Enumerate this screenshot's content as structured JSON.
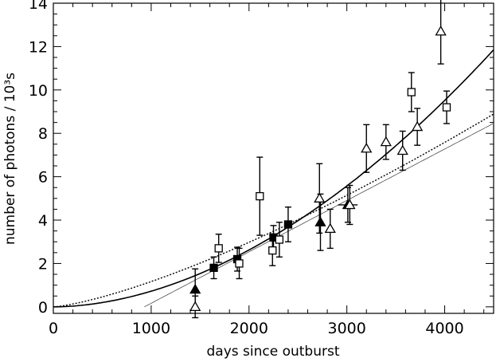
{
  "chart_data": {
    "type": "scatter",
    "title": "",
    "xlabel": "days since outburst",
    "ylabel": "number of photons / 10³s",
    "xlim": [
      0,
      4500
    ],
    "ylim": [
      -0.3,
      14
    ],
    "x_ticks": [
      0,
      1000,
      2000,
      3000,
      4000
    ],
    "y_ticks": [
      0,
      2,
      4,
      6,
      8,
      10,
      12,
      14
    ],
    "x_tick_labels": [
      "0",
      "1000",
      "2000",
      "3000",
      "4000"
    ],
    "y_tick_labels": [
      "0",
      "2",
      "4",
      "6",
      "8",
      "10",
      "12",
      "14"
    ],
    "grid": false,
    "legend": null,
    "series": [
      {
        "marker": "filled-square",
        "points": [
          {
            "x": 1640,
            "y": 1.8,
            "err": 0.5
          },
          {
            "x": 1880,
            "y": 2.2,
            "err": 0.55
          },
          {
            "x": 2250,
            "y": 3.2,
            "err": 0.55
          },
          {
            "x": 2400,
            "y": 3.8,
            "err": 0.8
          }
        ]
      },
      {
        "marker": "open-square",
        "points": [
          {
            "x": 1690,
            "y": 2.7,
            "err": 0.65
          },
          {
            "x": 1900,
            "y": 2.0,
            "err": 0.7
          },
          {
            "x": 2110,
            "y": 5.1,
            "err": 1.8
          },
          {
            "x": 2240,
            "y": 2.6,
            "err": 0.7
          },
          {
            "x": 2310,
            "y": 3.1,
            "err": 0.8
          },
          {
            "x": 3660,
            "y": 9.9,
            "err": 0.9
          },
          {
            "x": 4020,
            "y": 9.2,
            "err": 0.75
          }
        ]
      },
      {
        "marker": "filled-triangle",
        "points": [
          {
            "x": 1450,
            "y": 0.8,
            "err": 0.95
          },
          {
            "x": 2730,
            "y": 3.9,
            "err": 1.3
          },
          {
            "x": 3010,
            "y": 4.7,
            "err": 0.8,
            "xerr": 100
          }
        ]
      },
      {
        "marker": "open-triangle",
        "points": [
          {
            "x": 1450,
            "y": 0.0,
            "err": 0.5
          },
          {
            "x": 2720,
            "y": 5.0,
            "err": 1.6
          },
          {
            "x": 2830,
            "y": 3.6,
            "err": 0.9
          },
          {
            "x": 3030,
            "y": 4.7,
            "err": 0.9
          },
          {
            "x": 3200,
            "y": 7.3,
            "err": 1.1
          },
          {
            "x": 3400,
            "y": 7.6,
            "err": 0.8
          },
          {
            "x": 3570,
            "y": 7.2,
            "err": 0.9
          },
          {
            "x": 3720,
            "y": 8.3,
            "err": 0.85
          },
          {
            "x": 3960,
            "y": 12.7,
            "err": 1.5
          }
        ]
      }
    ],
    "curves": [
      {
        "style": "solid",
        "kind": "power",
        "x0": 0,
        "a": 1.9e-06,
        "p": 1.86
      },
      {
        "style": "dotted",
        "kind": "power",
        "x0": 0,
        "a": 0.000104,
        "p": 1.35
      },
      {
        "style": "thin",
        "kind": "linear",
        "x0": 930,
        "slope": 0.00237
      }
    ]
  }
}
